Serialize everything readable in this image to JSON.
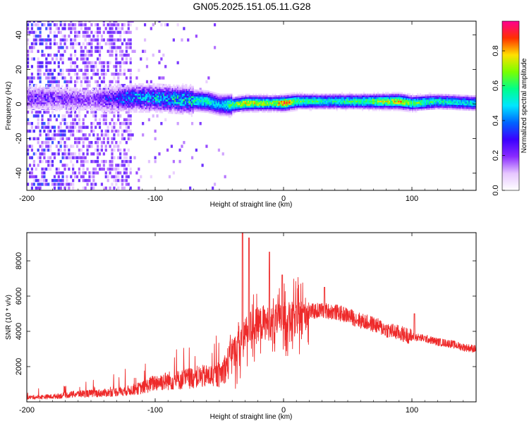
{
  "figure_title": "GN05.2025.151.05.11.G28",
  "colors": {
    "snr_line": "#ee2a2a",
    "spectrogram_core": "#d81818",
    "colormap": [
      "#ffffff",
      "#e6c6ff",
      "#8a2bff",
      "#3b00ff",
      "#0064ff",
      "#00e6ff",
      "#00ff8a",
      "#7aff00",
      "#ffe000",
      "#ff3000",
      "#ff0090"
    ]
  },
  "chart_data": [
    {
      "type": "heatmap",
      "xlabel": "Height of straight line (km)",
      "ylabel": "Frequency (Hz)",
      "xlim": [
        -200,
        150
      ],
      "ylim": [
        -50,
        48
      ],
      "x_ticks": [
        -200,
        -100,
        0,
        100
      ],
      "y_ticks": [
        -40,
        -20,
        0,
        20,
        40
      ],
      "colorbar": {
        "label": "Normalized spectral amplitude",
        "range": [
          0.0,
          0.97
        ],
        "ticks": [
          0.0,
          0.2,
          0.4,
          0.6,
          0.8
        ],
        "tick_labels": [
          "0.0",
          "0.2",
          "0.4",
          "0.6",
          "0.8"
        ]
      },
      "dominant_frequency_track": {
        "x": [
          -180,
          -150,
          -120,
          -100,
          -80,
          -60,
          -50,
          -40,
          -30,
          -20,
          -10,
          0,
          10,
          30,
          60,
          90,
          100,
          120,
          150
        ],
        "frequency": [
          3,
          2,
          3,
          3,
          2,
          1,
          -1,
          -1,
          0,
          0,
          0,
          0,
          1,
          1,
          1,
          1,
          0,
          1,
          0
        ],
        "normalized_amplitude": [
          0.25,
          0.2,
          0.45,
          0.5,
          0.55,
          0.6,
          0.5,
          0.7,
          0.85,
          0.8,
          0.7,
          0.95,
          0.7,
          0.6,
          0.65,
          0.85,
          0.7,
          0.6,
          0.55
        ]
      },
      "noise_region_x": [
        -200,
        -120
      ]
    },
    {
      "type": "line",
      "xlabel": "Height of straight line (km)",
      "ylabel": "SNR (10 * v/v)",
      "xlim": [
        -200,
        150
      ],
      "ylim": [
        0,
        9600
      ],
      "x_ticks": [
        -200,
        -100,
        0,
        100
      ],
      "y_ticks": [
        2000,
        4000,
        6000,
        8000
      ],
      "series": [
        {
          "x": [
            -200,
            -180,
            -160,
            -140,
            -120,
            -110,
            -100,
            -90,
            -80,
            -70,
            -60,
            -50,
            -45,
            -40,
            -35,
            -30,
            -25,
            -20,
            -15,
            -10,
            -5,
            0,
            5,
            10,
            20,
            30,
            40,
            50,
            60,
            70,
            80,
            90,
            100,
            110,
            120,
            130,
            140,
            150
          ],
          "y": [
            250,
            300,
            450,
            500,
            650,
            800,
            1100,
            1200,
            1250,
            1400,
            1450,
            1500,
            2000,
            2600,
            3200,
            3800,
            4300,
            4400,
            4500,
            4400,
            4600,
            4700,
            4700,
            4800,
            5100,
            5200,
            5100,
            4900,
            4600,
            4400,
            4100,
            3900,
            3700,
            3600,
            3400,
            3300,
            3100,
            3000
          ]
        }
      ],
      "peaks": [
        {
          "x": -32,
          "y": 9600
        },
        {
          "x": -27,
          "y": 9300
        },
        {
          "x": -11,
          "y": 8500
        },
        {
          "x": -1,
          "y": 7200
        },
        {
          "x": 32,
          "y": 6500
        },
        {
          "x": 102,
          "y": 5000
        }
      ]
    }
  ]
}
